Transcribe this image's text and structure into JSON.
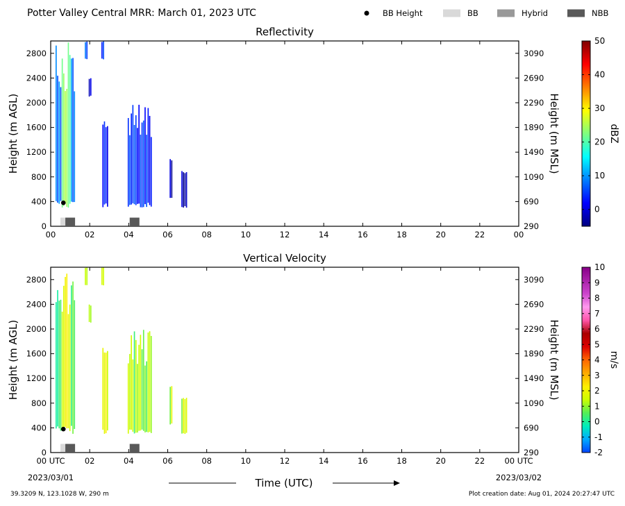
{
  "title": "Potter Valley Central MRR:  March 01, 2023 UTC",
  "legend": {
    "placement": "top-right",
    "items": [
      {
        "label": "BB Height",
        "marker": "dot",
        "color": "#000000"
      },
      {
        "label": "BB",
        "marker": "rect",
        "color": "#d9d9d9"
      },
      {
        "label": "Hybrid",
        "marker": "rect",
        "color": "#999999"
      },
      {
        "label": "NBB",
        "marker": "rect",
        "color": "#595959"
      }
    ]
  },
  "x_axis": {
    "label": "Time (UTC)",
    "unit": "hour UTC",
    "range": [
      0,
      24
    ],
    "ticks": [
      0,
      2,
      4,
      6,
      8,
      10,
      12,
      14,
      16,
      18,
      20,
      22,
      24
    ],
    "tick_labels_top": [
      "00",
      "02",
      "04",
      "06",
      "08",
      "10",
      "12",
      "14",
      "16",
      "18",
      "20",
      "22",
      "00"
    ],
    "tick_labels_bottom": [
      "00 UTC",
      "02",
      "04",
      "06",
      "08",
      "10",
      "12",
      "14",
      "16",
      "18",
      "20",
      "22",
      "00 UTC"
    ],
    "start_date": "2023/03/01",
    "end_date": "2023/03/02"
  },
  "footer": {
    "location": "39.3209 N, 123.1028 W, 290 m",
    "creation": "Plot creation date: Aug 01, 2024 20:27:47 UTC"
  },
  "chart_data": [
    {
      "type": "heatmap",
      "title": "Reflectivity",
      "ylabel": "Height (m AGL)",
      "y2label": "Height (m MSL)",
      "ylim": [
        0,
        3000
      ],
      "yticks": [
        0,
        400,
        800,
        1200,
        1600,
        2000,
        2400,
        2800
      ],
      "y2ticks": [
        290,
        690,
        1090,
        1490,
        1890,
        2290,
        2690,
        3090
      ],
      "y2_offset": 290,
      "xlim": [
        0,
        24
      ],
      "colorbar": {
        "label": "dBZ",
        "range": [
          -5,
          50
        ],
        "ticks": [
          0,
          10,
          20,
          30,
          40,
          50
        ],
        "colormap": "jet",
        "stops": [
          "#00007f",
          "#0000ff",
          "#007fff",
          "#00ffff",
          "#7fff7f",
          "#ffff00",
          "#ff7f00",
          "#ff0000",
          "#7f0000"
        ]
      },
      "echoes": [
        {
          "t_start": 0.25,
          "t_end": 1.25,
          "h_bottom": 300,
          "h_top": 3000,
          "value": 8,
          "core": {
            "t": 0.75,
            "width": 0.25,
            "value": 25
          }
        },
        {
          "t_start": 1.75,
          "t_end": 1.85,
          "h_bottom": 2700,
          "h_top": 3000,
          "value": 6
        },
        {
          "t_start": 2.6,
          "t_end": 2.7,
          "h_bottom": 2700,
          "h_top": 3000,
          "value": 6
        },
        {
          "t_start": 1.95,
          "t_end": 2.05,
          "h_bottom": 2100,
          "h_top": 2400,
          "value": 0
        },
        {
          "t_start": 2.65,
          "t_end": 2.95,
          "h_bottom": 300,
          "h_top": 1700,
          "value": 3
        },
        {
          "t_start": 3.95,
          "t_end": 5.15,
          "h_bottom": 300,
          "h_top": 2000,
          "value": 4
        },
        {
          "t_start": 6.1,
          "t_end": 6.2,
          "h_bottom": 450,
          "h_top": 1100,
          "value": -1
        },
        {
          "t_start": 6.7,
          "t_end": 6.95,
          "h_bottom": 300,
          "h_top": 900,
          "value": -2
        }
      ],
      "bb_height": [
        {
          "t": 0.65,
          "h": 380
        }
      ],
      "bb_type": [
        {
          "t_start": 0.5,
          "t_end": 0.75,
          "type": "BB"
        },
        {
          "t_start": 0.75,
          "t_end": 1.25,
          "type": "NBB"
        },
        {
          "t_start": 4.05,
          "t_end": 4.55,
          "type": "NBB"
        }
      ]
    },
    {
      "type": "heatmap",
      "title": "Vertical Velocity",
      "ylabel": "Height (m AGL)",
      "y2label": "Height (m MSL)",
      "ylim": [
        0,
        3000
      ],
      "yticks": [
        0,
        400,
        800,
        1200,
        1600,
        2000,
        2400,
        2800
      ],
      "y2ticks": [
        290,
        690,
        1090,
        1490,
        1890,
        2290,
        2690,
        3090
      ],
      "y2_offset": 290,
      "xlim": [
        0,
        24
      ],
      "colorbar": {
        "label": "m/s",
        "range": [
          -2,
          10
        ],
        "ticks": [
          -2,
          -1,
          0,
          1,
          2,
          3,
          4,
          5,
          6,
          7,
          8,
          9,
          10
        ],
        "tick_labels": [
          "-2",
          "-1",
          "0",
          "1",
          "2",
          "3",
          "4",
          "5",
          "6",
          "7",
          "8",
          "9",
          "10"
        ],
        "stops": [
          "#0044ff",
          "#00aaff",
          "#00eebb",
          "#55ee55",
          "#ccff00",
          "#ffee00",
          "#ffaa00",
          "#ff6600",
          "#dd0000",
          "#aa0000",
          "#ff55aa",
          "#ff99ee",
          "#cc44cc",
          "#aa22aa",
          "#880088"
        ]
      },
      "echoes": [
        {
          "t_start": 0.25,
          "t_end": 1.25,
          "h_bottom": 300,
          "h_top": 3000,
          "value": 0.6,
          "core": {
            "t": 0.75,
            "width": 0.25,
            "value": 2.3
          }
        },
        {
          "t_start": 1.75,
          "t_end": 1.85,
          "h_bottom": 2700,
          "h_top": 3000,
          "value": 1.8
        },
        {
          "t_start": 2.6,
          "t_end": 2.7,
          "h_bottom": 2700,
          "h_top": 3000,
          "value": 1.8
        },
        {
          "t_start": 1.95,
          "t_end": 2.05,
          "h_bottom": 2100,
          "h_top": 2400,
          "value": 1.2
        },
        {
          "t_start": 2.65,
          "t_end": 2.95,
          "h_bottom": 300,
          "h_top": 1700,
          "value": 1.6
        },
        {
          "t_start": 3.95,
          "t_end": 5.15,
          "h_bottom": 300,
          "h_top": 2000,
          "value": 1.0
        },
        {
          "t_start": 6.1,
          "t_end": 6.2,
          "h_bottom": 450,
          "h_top": 1100,
          "value": 1.4
        },
        {
          "t_start": 6.7,
          "t_end": 6.95,
          "h_bottom": 300,
          "h_top": 900,
          "value": 1.2
        }
      ],
      "bb_height": [
        {
          "t": 0.65,
          "h": 380
        }
      ],
      "bb_type": [
        {
          "t_start": 0.5,
          "t_end": 0.75,
          "type": "BB"
        },
        {
          "t_start": 0.75,
          "t_end": 1.25,
          "type": "NBB"
        },
        {
          "t_start": 4.05,
          "t_end": 4.55,
          "type": "NBB"
        }
      ]
    }
  ]
}
